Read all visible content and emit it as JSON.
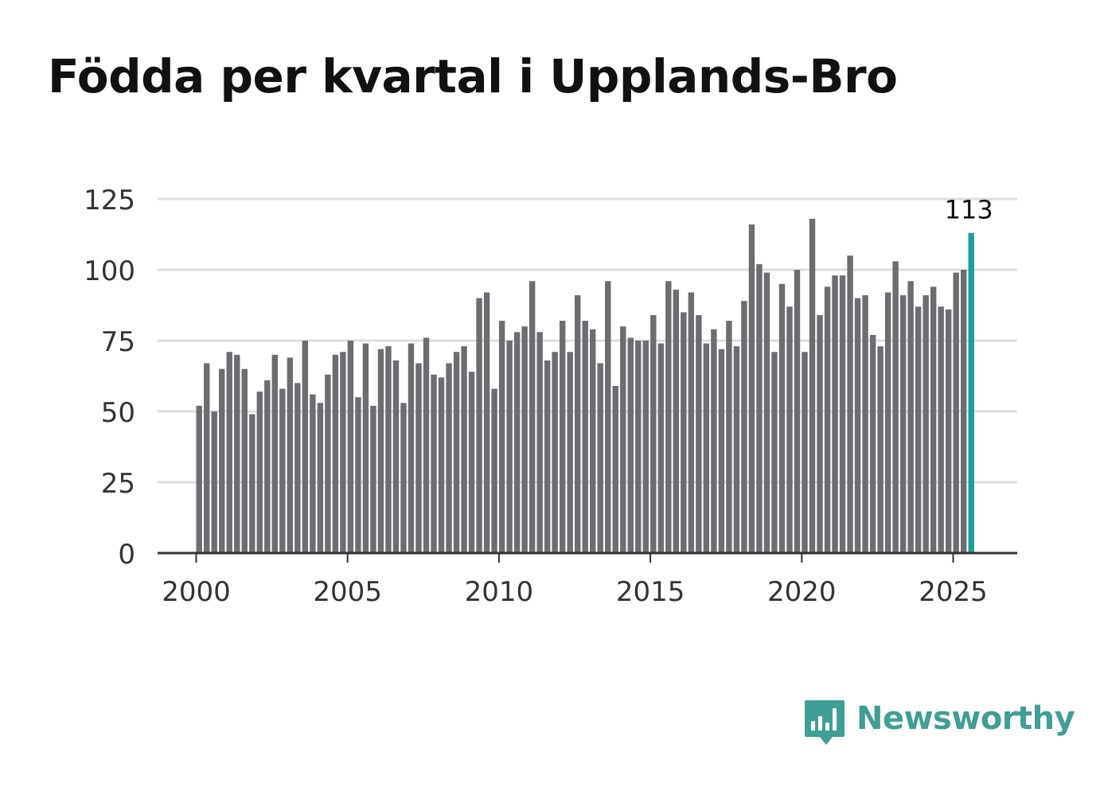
{
  "title": "Födda per kvartal i Upplands-Bro",
  "brand": {
    "name": "Newsworthy",
    "icon": "newsworthy-logo-icon",
    "color": "#3f9e95"
  },
  "colors": {
    "bar": "#6d6c71",
    "highlight": "#1a9e95",
    "grid": "#dddddd",
    "axis": "#333333",
    "tick_text": "#333333"
  },
  "chart_data": {
    "type": "bar",
    "title": "Födda per kvartal i Upplands-Bro",
    "xlabel": "",
    "ylabel": "",
    "ylim": [
      0,
      125
    ],
    "yticks": [
      0,
      25,
      50,
      75,
      100,
      125
    ],
    "xticks": [
      2000,
      2005,
      2010,
      2015,
      2020,
      2025
    ],
    "x_start": 2000,
    "x_step": 0.25,
    "values": [
      52,
      67,
      50,
      65,
      71,
      70,
      65,
      49,
      57,
      61,
      70,
      58,
      69,
      60,
      75,
      56,
      53,
      63,
      70,
      71,
      75,
      55,
      74,
      52,
      72,
      73,
      68,
      53,
      74,
      67,
      76,
      63,
      62,
      67,
      71,
      73,
      64,
      90,
      92,
      58,
      82,
      75,
      78,
      80,
      96,
      78,
      68,
      71,
      82,
      71,
      91,
      82,
      79,
      67,
      96,
      59,
      80,
      76,
      75,
      75,
      84,
      74,
      96,
      93,
      85,
      92,
      84,
      74,
      79,
      72,
      82,
      73,
      89,
      116,
      102,
      99,
      71,
      95,
      87,
      100,
      71,
      118,
      84,
      94,
      98,
      98,
      105,
      90,
      91,
      77,
      73,
      92,
      103,
      91,
      96,
      87,
      91,
      94,
      87,
      86,
      99,
      100,
      113
    ],
    "highlight_index": 102,
    "highlight_label": "113"
  }
}
